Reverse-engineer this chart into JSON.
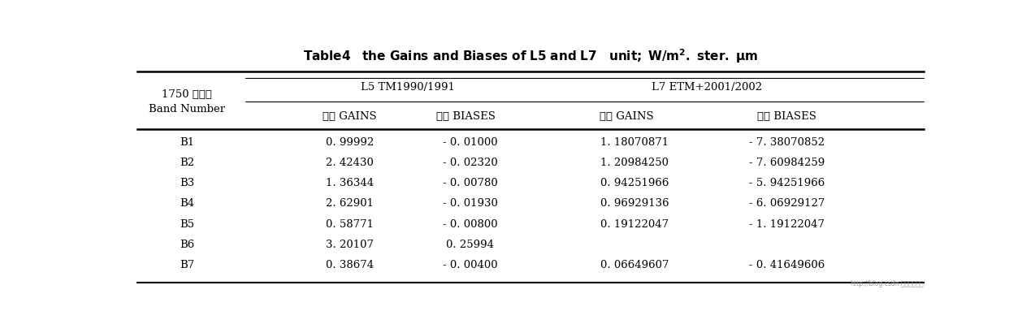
{
  "title_part1": "Table4   the Gains and Biases of L5 and L7   unit",
  "title_part2": "W/m",
  "title_part3": ". ster. ",
  "title_part4": "m",
  "bg_color": "#ffffff",
  "text_color": "#000000",
  "header1_left": "1750 波段号",
  "header1_left2": "Band Number",
  "header1_L5": "L5 TM1990/1991",
  "header1_L7": "L7 ETM+2001/2002",
  "header2": [
    "增益 GAINS",
    "偏置 BIASES",
    "增益 GAINS",
    "偏置 BIASES"
  ],
  "rows": [
    [
      "B1",
      "0. 99992",
      "- 0. 01000",
      "1. 18070871",
      "- 7. 38070852"
    ],
    [
      "B2",
      "2. 42430",
      "- 0. 02320",
      "1. 20984250",
      "- 7. 60984259"
    ],
    [
      "B3",
      "1. 36344",
      "- 0. 00780",
      "0. 94251966",
      "- 5. 94251966"
    ],
    [
      "B4",
      "2. 62901",
      "- 0. 01930",
      "0. 96929136",
      "- 6. 06929127"
    ],
    [
      "B5",
      "0. 58771",
      "- 0. 00800",
      "0. 19122047",
      "- 1. 19122047"
    ],
    [
      "B6",
      "3. 20107",
      "0. 25994",
      "",
      ""
    ],
    [
      "B7",
      "0. 38674",
      "- 0. 00400",
      "0. 06649607",
      "- 0. 41649606"
    ]
  ],
  "watermark": "http://blog.csdn.小测测数据网",
  "font_size": 9.5,
  "title_font_size": 11,
  "header_font_size": 9.5
}
